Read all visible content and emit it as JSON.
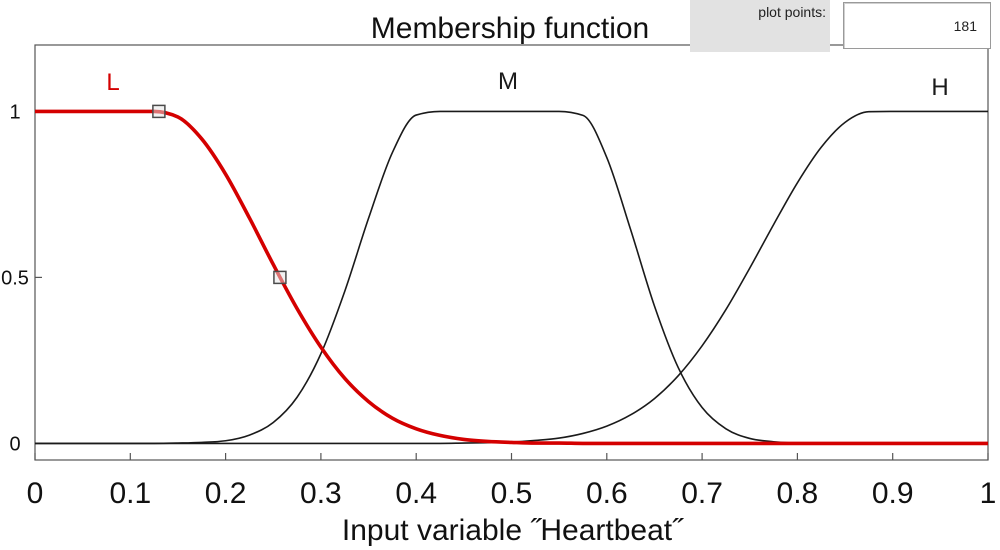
{
  "window": {
    "plot_points_label": "plot points:",
    "plot_points_value": "181"
  },
  "chart_data": {
    "type": "line",
    "title": "Membership function",
    "xlabel": "Input variable ˝Heartbeat˝",
    "ylabel": "",
    "xlim": [
      0,
      1
    ],
    "ylim": [
      -0.05,
      1.2
    ],
    "xticks": [
      0,
      0.1,
      0.2,
      0.3,
      0.4,
      0.5,
      0.6,
      0.7,
      0.8,
      0.9,
      1
    ],
    "xtick_labels": [
      "0",
      "0.1",
      "0.2",
      "0.3",
      "0.4",
      "0.5",
      "0.6",
      "0.7",
      "0.8",
      "0.9",
      "1"
    ],
    "yticks": [
      0,
      0.5,
      1
    ],
    "ytick_labels": [
      "0",
      "0.5",
      "1"
    ],
    "grid": false,
    "selected": "L",
    "x": [
      0,
      0.025,
      0.05,
      0.075,
      0.1,
      0.125,
      0.15,
      0.175,
      0.2,
      0.225,
      0.25,
      0.275,
      0.3,
      0.325,
      0.35,
      0.375,
      0.4,
      0.425,
      0.45,
      0.475,
      0.5,
      0.525,
      0.55,
      0.575,
      0.6,
      0.625,
      0.65,
      0.675,
      0.7,
      0.725,
      0.75,
      0.775,
      0.8,
      0.825,
      0.85,
      0.875,
      0.9,
      0.925,
      0.95,
      0.975,
      1
    ],
    "series": [
      {
        "name": "L",
        "color": "#d40000",
        "values": [
          1,
          1,
          1,
          1,
          1,
          1,
          0.983,
          0.917,
          0.811,
          0.679,
          0.539,
          0.406,
          0.29,
          0.196,
          0.126,
          0.076,
          0.044,
          0.024,
          0.012,
          0.006,
          0.003,
          0.001,
          0.001,
          0,
          0,
          0,
          0,
          0,
          0,
          0,
          0,
          0,
          0,
          0,
          0,
          0,
          0,
          0,
          0,
          0,
          0
        ]
      },
      {
        "name": "M",
        "color": "#1a1a1a",
        "values": [
          0,
          0,
          0,
          0,
          0,
          0,
          0.001,
          0.003,
          0.008,
          0.025,
          0.063,
          0.139,
          0.27,
          0.458,
          0.678,
          0.876,
          0.989,
          1,
          1,
          1,
          1,
          1,
          1,
          0.988,
          0.861,
          0.644,
          0.414,
          0.228,
          0.108,
          0.044,
          0.015,
          0.005,
          0.001,
          0,
          0,
          0,
          0,
          0,
          0,
          0,
          0
        ]
      },
      {
        "name": "H",
        "color": "#1a1a1a",
        "values": [
          0,
          0,
          0,
          0,
          0,
          0,
          0,
          0,
          0,
          0,
          0,
          0,
          0,
          0,
          0,
          0,
          0,
          0,
          0.001,
          0.002,
          0.004,
          0.009,
          0.016,
          0.03,
          0.052,
          0.086,
          0.135,
          0.204,
          0.294,
          0.403,
          0.528,
          0.659,
          0.785,
          0.892,
          0.967,
          0.999,
          1,
          1,
          1,
          1,
          1
        ]
      }
    ],
    "control_points": [
      {
        "x": 0.13,
        "y": 1
      },
      {
        "x": 0.257,
        "y": 0.5
      }
    ]
  }
}
